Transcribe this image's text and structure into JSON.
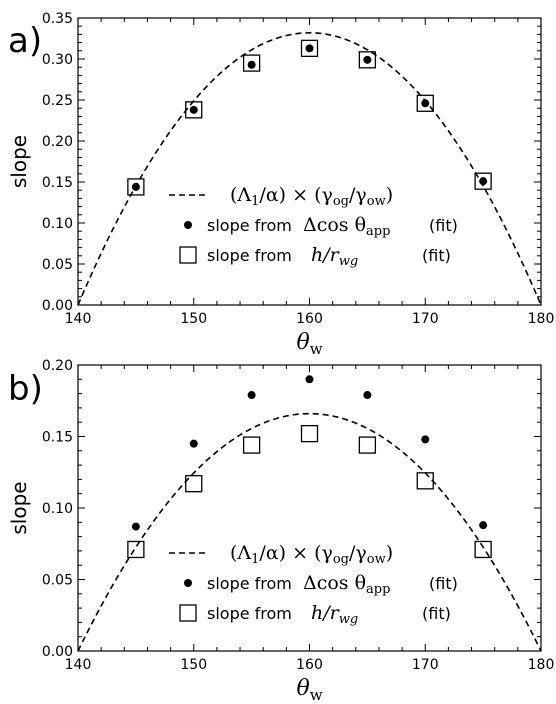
{
  "chart_data": [
    {
      "type": "scatter",
      "panel_label": "a)",
      "xlabel": "θ",
      "xlabel_sub": "w",
      "ylabel": "slope",
      "xlim": [
        140,
        180
      ],
      "ylim": [
        0,
        0.35
      ],
      "xticks": [
        "140",
        "150",
        "160",
        "170",
        "180"
      ],
      "yticks": [
        "0.00",
        "0.05",
        "0.10",
        "0.15",
        "0.20",
        "0.25",
        "0.30",
        "0.35"
      ],
      "curve_peak": 0.332,
      "series": [
        {
          "name": "slope from Δcos θ_app (fit)",
          "marker": "dot",
          "x": [
            145,
            150,
            155,
            160,
            165,
            170,
            175
          ],
          "y": [
            0.144,
            0.238,
            0.293,
            0.313,
            0.299,
            0.246,
            0.151
          ]
        },
        {
          "name": "slope from h/r_wg (fit)",
          "marker": "square",
          "x": [
            145,
            150,
            155,
            160,
            165,
            170,
            175
          ],
          "y": [
            0.144,
            0.238,
            0.295,
            0.313,
            0.299,
            0.246,
            0.151
          ]
        }
      ],
      "legend": {
        "curve": {
          "a": "(Λ",
          "a_sub": "1",
          "b": "/α) × (γ",
          "b_sub": "og",
          "c": "/γ",
          "c_sub": "ow",
          "d": ")"
        },
        "dot": {
          "text": "slope from",
          "math": "Δcos θ",
          "math_sub": "app",
          "fit": "(fit)"
        },
        "square": {
          "text": "slope from",
          "math": "h/r",
          "math_sub": "wg",
          "fit": "(fit)"
        }
      }
    },
    {
      "type": "scatter",
      "panel_label": "b)",
      "xlabel": "θ",
      "xlabel_sub": "w",
      "ylabel": "slope",
      "xlim": [
        140,
        180
      ],
      "ylim": [
        0,
        0.2
      ],
      "xticks": [
        "140",
        "150",
        "160",
        "170",
        "180"
      ],
      "yticks": [
        "0.00",
        "0.05",
        "0.10",
        "0.15",
        "0.20"
      ],
      "curve_peak": 0.166,
      "series": [
        {
          "name": "slope from Δcos θ_app (fit)",
          "marker": "dot",
          "x": [
            145,
            150,
            155,
            160,
            165,
            170,
            175
          ],
          "y": [
            0.087,
            0.145,
            0.179,
            0.19,
            0.179,
            0.148,
            0.088
          ]
        },
        {
          "name": "slope from h/r_wg (fit)",
          "marker": "square",
          "x": [
            145,
            150,
            155,
            160,
            165,
            170,
            175
          ],
          "y": [
            0.071,
            0.117,
            0.144,
            0.152,
            0.144,
            0.119,
            0.071
          ]
        }
      ],
      "legend": {
        "curve": {
          "a": "(Λ",
          "a_sub": "1",
          "b": "/α) × (γ",
          "b_sub": "og",
          "c": "/γ",
          "c_sub": "ow",
          "d": ")"
        },
        "dot": {
          "text": "slope from",
          "math": "Δcos θ",
          "math_sub": "app",
          "fit": "(fit)"
        },
        "square": {
          "text": "slope from",
          "math": "h/r",
          "math_sub": "wg",
          "fit": "(fit)"
        }
      }
    }
  ]
}
